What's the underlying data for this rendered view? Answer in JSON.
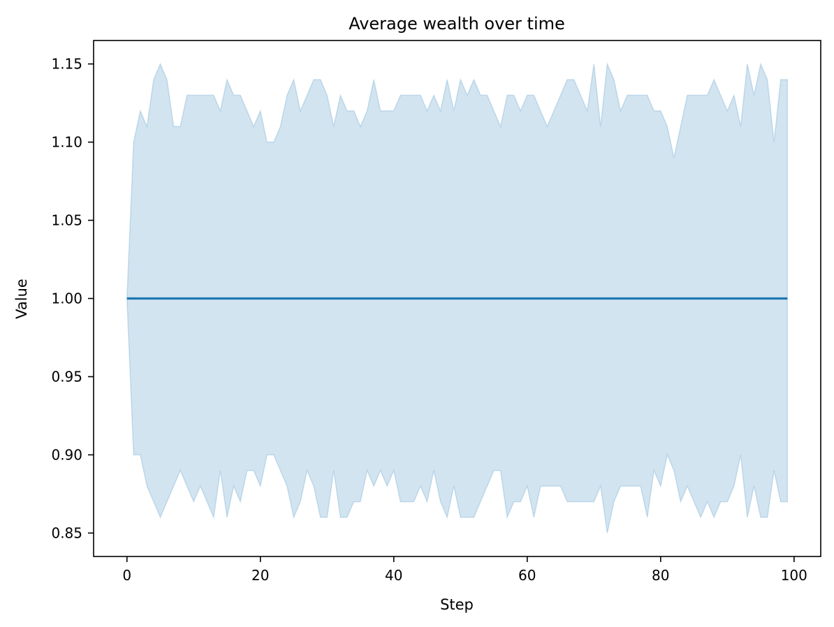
{
  "chart_data": {
    "type": "line",
    "title": "Average wealth over time",
    "xlabel": "Step",
    "ylabel": "Value",
    "xlim": [
      -5,
      104
    ],
    "ylim": [
      0.835,
      1.165
    ],
    "xticks": [
      0,
      20,
      40,
      60,
      80,
      100
    ],
    "xtick_labels": [
      "0",
      "20",
      "40",
      "60",
      "80",
      "100"
    ],
    "yticks": [
      0.85,
      0.9,
      0.95,
      1.0,
      1.05,
      1.1,
      1.15
    ],
    "ytick_labels": [
      "0.85",
      "0.90",
      "0.95",
      "1.00",
      "1.05",
      "1.10",
      "1.15"
    ],
    "grid": false,
    "x": [
      0,
      1,
      2,
      3,
      4,
      5,
      6,
      7,
      8,
      9,
      10,
      11,
      12,
      13,
      14,
      15,
      16,
      17,
      18,
      19,
      20,
      21,
      22,
      23,
      24,
      25,
      26,
      27,
      28,
      29,
      30,
      31,
      32,
      33,
      34,
      35,
      36,
      37,
      38,
      39,
      40,
      41,
      42,
      43,
      44,
      45,
      46,
      47,
      48,
      49,
      50,
      51,
      52,
      53,
      54,
      55,
      56,
      57,
      58,
      59,
      60,
      61,
      62,
      63,
      64,
      65,
      66,
      67,
      68,
      69,
      70,
      71,
      72,
      73,
      74,
      75,
      76,
      77,
      78,
      79,
      80,
      81,
      82,
      83,
      84,
      85,
      86,
      87,
      88,
      89,
      90,
      91,
      92,
      93,
      94,
      95,
      96,
      97,
      98,
      99
    ],
    "series": [
      {
        "values": [
          1,
          1,
          1,
          1,
          1,
          1,
          1,
          1,
          1,
          1,
          1,
          1,
          1,
          1,
          1,
          1,
          1,
          1,
          1,
          1,
          1,
          1,
          1,
          1,
          1,
          1,
          1,
          1,
          1,
          1,
          1,
          1,
          1,
          1,
          1,
          1,
          1,
          1,
          1,
          1,
          1,
          1,
          1,
          1,
          1,
          1,
          1,
          1,
          1,
          1,
          1,
          1,
          1,
          1,
          1,
          1,
          1,
          1,
          1,
          1,
          1,
          1,
          1,
          1,
          1,
          1,
          1,
          1,
          1,
          1,
          1,
          1,
          1,
          1,
          1,
          1,
          1,
          1,
          1,
          1,
          1,
          1,
          1,
          1,
          1,
          1,
          1,
          1,
          1,
          1,
          1,
          1,
          1,
          1,
          1,
          1,
          1,
          1,
          1,
          1
        ],
        "color": "#1f77b4",
        "band_upper": [
          1.0,
          1.1,
          1.12,
          1.11,
          1.14,
          1.15,
          1.14,
          1.11,
          1.11,
          1.13,
          1.13,
          1.13,
          1.13,
          1.13,
          1.12,
          1.14,
          1.13,
          1.13,
          1.12,
          1.11,
          1.12,
          1.1,
          1.1,
          1.11,
          1.13,
          1.14,
          1.12,
          1.13,
          1.14,
          1.14,
          1.13,
          1.11,
          1.13,
          1.12,
          1.12,
          1.11,
          1.12,
          1.14,
          1.12,
          1.12,
          1.12,
          1.13,
          1.13,
          1.13,
          1.13,
          1.12,
          1.13,
          1.12,
          1.14,
          1.12,
          1.14,
          1.13,
          1.14,
          1.13,
          1.13,
          1.12,
          1.11,
          1.13,
          1.13,
          1.12,
          1.13,
          1.13,
          1.12,
          1.11,
          1.12,
          1.13,
          1.14,
          1.14,
          1.13,
          1.12,
          1.15,
          1.11,
          1.15,
          1.14,
          1.12,
          1.13,
          1.13,
          1.13,
          1.13,
          1.12,
          1.12,
          1.11,
          1.09,
          1.11,
          1.13,
          1.13,
          1.13,
          1.13,
          1.14,
          1.13,
          1.12,
          1.13,
          1.11,
          1.15,
          1.13,
          1.15,
          1.14,
          1.1,
          1.14,
          1.14
        ],
        "band_lower": [
          1.0,
          0.9,
          0.9,
          0.88,
          0.87,
          0.86,
          0.87,
          0.88,
          0.89,
          0.88,
          0.87,
          0.88,
          0.87,
          0.86,
          0.89,
          0.86,
          0.88,
          0.87,
          0.89,
          0.89,
          0.88,
          0.9,
          0.9,
          0.89,
          0.88,
          0.86,
          0.87,
          0.89,
          0.88,
          0.86,
          0.86,
          0.89,
          0.86,
          0.86,
          0.87,
          0.87,
          0.89,
          0.88,
          0.89,
          0.88,
          0.89,
          0.87,
          0.87,
          0.87,
          0.88,
          0.87,
          0.89,
          0.87,
          0.86,
          0.88,
          0.86,
          0.86,
          0.86,
          0.87,
          0.88,
          0.89,
          0.89,
          0.86,
          0.87,
          0.87,
          0.88,
          0.86,
          0.88,
          0.88,
          0.88,
          0.88,
          0.87,
          0.87,
          0.87,
          0.87,
          0.87,
          0.88,
          0.85,
          0.87,
          0.88,
          0.88,
          0.88,
          0.88,
          0.86,
          0.89,
          0.88,
          0.9,
          0.89,
          0.87,
          0.88,
          0.87,
          0.86,
          0.87,
          0.86,
          0.87,
          0.87,
          0.88,
          0.9,
          0.86,
          0.88,
          0.86,
          0.86,
          0.89,
          0.87,
          0.87
        ],
        "band_color": "#1f77b4",
        "band_opacity": 0.2
      }
    ]
  }
}
